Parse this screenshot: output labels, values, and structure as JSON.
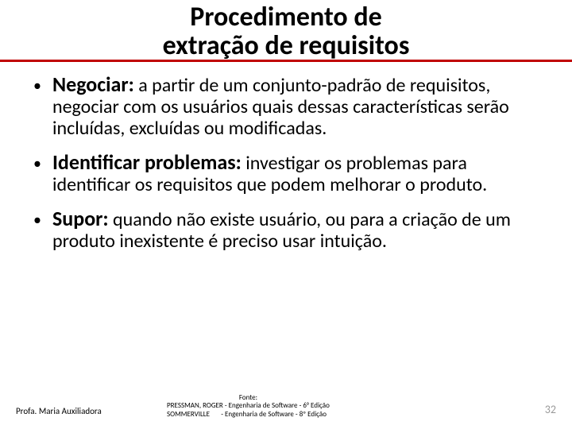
{
  "title_line1": "Procedimento de",
  "title_line2": "extração de requisitos",
  "title_fontsize": 34,
  "rule_color": "#c00000",
  "rule_thickness": 3,
  "bullets": [
    {
      "term": "Negociar:",
      "body": " a partir de um conjunto-padrão de requisitos, negociar com os usuários quais dessas características serão incluídas, excluídas ou modificadas."
    },
    {
      "term": "Identificar problemas:",
      "body": " investigar os problemas para identificar os requisitos que podem melhorar o produto."
    },
    {
      "term": "Supor:",
      "body": " quando não existe usuário, ou para a criação de um produto inexistente é preciso usar intuição."
    }
  ],
  "term_fontsize": 26,
  "body_fontsize": 24,
  "bullet_glyph": "•",
  "footer": {
    "professor": "Profa. Maria Auxiliadora",
    "professor_fontsize": 11,
    "source_title": "Fonte:",
    "source_line1": "PRESSMAN, ROGER - Engenharia de Software - 6° Edição",
    "source_line2": "SOMMERVILLE       - Engenharia de Software - 8º Edição",
    "source_fontsize": 9,
    "page_number": "32",
    "page_number_color": "#9a9a9a",
    "page_number_fontsize": 14
  }
}
